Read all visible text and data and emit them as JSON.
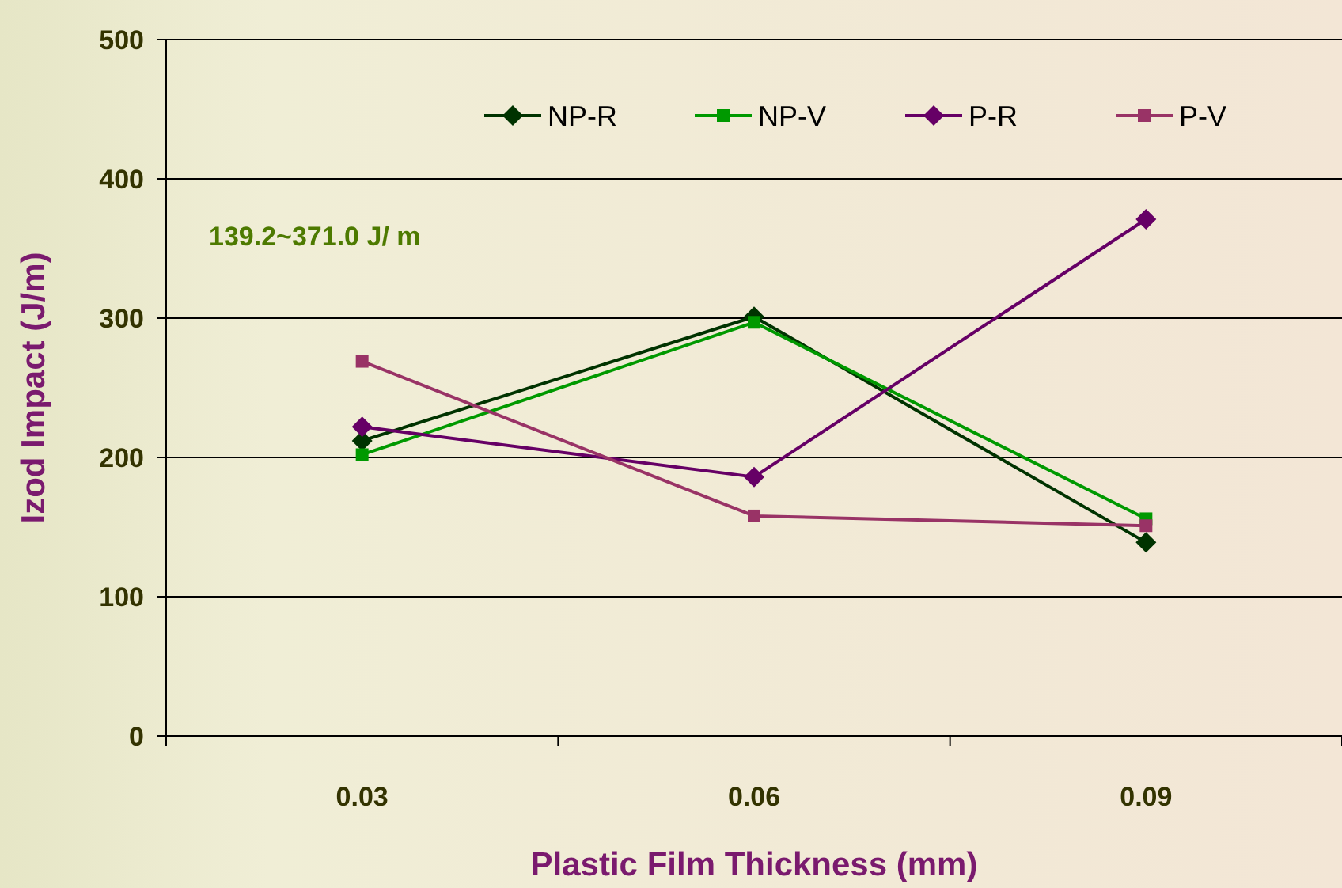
{
  "chart_data": {
    "type": "line",
    "xlabel": "Plastic Film Thickness (mm)",
    "ylabel": "Izod Impact (J/m)",
    "categories": [
      "0.03",
      "0.06",
      "0.09"
    ],
    "ylim": [
      0,
      500
    ],
    "yticks": [
      0,
      100,
      200,
      300,
      400,
      500
    ],
    "grid": "y",
    "legend": "top right",
    "annotations": [
      "139.2~371.0 J/ m"
    ],
    "series": [
      {
        "name": "NP-R",
        "color": "#003300",
        "marker": "diamond",
        "values": [
          212,
          301,
          139
        ]
      },
      {
        "name": "NP-V",
        "color": "#009900",
        "marker": "square",
        "values": [
          202,
          297,
          156
        ]
      },
      {
        "name": "P-R",
        "color": "#660066",
        "marker": "diamond",
        "values": [
          222,
          186,
          371
        ]
      },
      {
        "name": "P-V",
        "color": "#993366",
        "marker": "square",
        "values": [
          269,
          158,
          151
        ]
      }
    ]
  }
}
